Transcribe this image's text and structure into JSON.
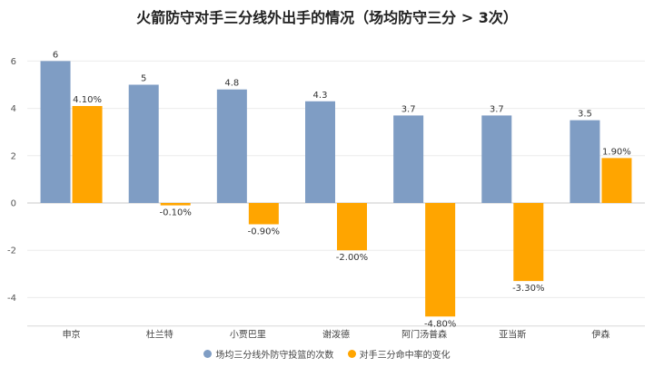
{
  "chart_data": {
    "type": "bar",
    "title": "火箭防守对手三分线外出手的情况（场均防守三分 > 3次）",
    "categories": [
      "申京",
      "杜兰特",
      "小贾巴里",
      "谢泼德",
      "阿门汤普森",
      "亚当斯",
      "伊森"
    ],
    "series": [
      {
        "name": "场均三分线外防守投篮的次数",
        "color": "#7f9dc4",
        "values": [
          6,
          5,
          4.8,
          4.3,
          3.7,
          3.7,
          3.5
        ],
        "labels": [
          "6",
          "5",
          "4.8",
          "4.3",
          "3.7",
          "3.7",
          "3.5"
        ]
      },
      {
        "name": "对手三分命中率的变化",
        "color": "#ffa500",
        "values": [
          4.1,
          -0.1,
          -0.9,
          -2.0,
          -4.8,
          -3.3,
          1.9
        ],
        "labels": [
          "4.10%",
          "-0.10%",
          "-0.90%",
          "-2.00%",
          "-4.80%",
          "-3.30%",
          "1.90%"
        ]
      }
    ],
    "yticks": [
      "6",
      "4",
      "2",
      "0",
      "-2",
      "-4"
    ],
    "ylim": [
      -5.2,
      6.4
    ],
    "grid": true,
    "legend_position": "bottom"
  }
}
